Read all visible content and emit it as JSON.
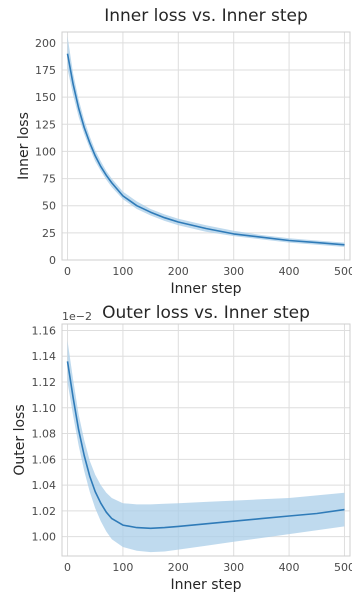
{
  "chart_data": [
    {
      "type": "line",
      "title": "Inner loss vs. Inner step",
      "xlabel": "Inner step",
      "ylabel": "Inner loss",
      "xlim": [
        -10,
        510
      ],
      "ylim": [
        0,
        210
      ],
      "xticks": [
        0,
        100,
        200,
        300,
        400,
        500
      ],
      "yticks": [
        0,
        25,
        50,
        75,
        100,
        125,
        150,
        175,
        200
      ],
      "grid": true,
      "colors": {
        "line": "#2f7bb8",
        "band": "#a9cde8"
      },
      "series": [
        {
          "x": [
            0,
            10,
            20,
            30,
            40,
            50,
            60,
            70,
            80,
            100,
            125,
            150,
            175,
            200,
            250,
            300,
            350,
            400,
            450,
            500
          ],
          "y": [
            190,
            162,
            140,
            122,
            108,
            96,
            86,
            78,
            71,
            59,
            50,
            44,
            39,
            35,
            29,
            24,
            21,
            18,
            16,
            14
          ],
          "lower": [
            176,
            152,
            132,
            116,
            103,
            91,
            82,
            74,
            67,
            56,
            47,
            41,
            36,
            32,
            26,
            22,
            19,
            16,
            14,
            12
          ],
          "upper": [
            206,
            172,
            148,
            129,
            114,
            101,
            91,
            82,
            75,
            63,
            54,
            47,
            42,
            38,
            32,
            27,
            23,
            20,
            18,
            16
          ]
        }
      ]
    },
    {
      "type": "line",
      "title": "Outer loss vs. Inner step",
      "xlabel": "Inner step",
      "ylabel": "Outer loss",
      "offset_label": "1e−2",
      "xlim": [
        -10,
        510
      ],
      "ylim": [
        0.985,
        1.165
      ],
      "xticks": [
        0,
        100,
        200,
        300,
        400,
        500
      ],
      "yticks": [
        1.0,
        1.02,
        1.04,
        1.06,
        1.08,
        1.1,
        1.12,
        1.14,
        1.16
      ],
      "grid": true,
      "colors": {
        "line": "#2f7bb8",
        "band": "#a9cde8"
      },
      "series": [
        {
          "x": [
            0,
            10,
            20,
            30,
            40,
            50,
            60,
            70,
            80,
            100,
            125,
            150,
            175,
            200,
            250,
            300,
            350,
            400,
            450,
            500
          ],
          "y": [
            1.136,
            1.108,
            1.083,
            1.063,
            1.047,
            1.035,
            1.026,
            1.019,
            1.014,
            1.009,
            1.007,
            1.0065,
            1.007,
            1.008,
            1.01,
            1.012,
            1.014,
            1.016,
            1.018,
            1.021
          ],
          "lower": [
            1.12,
            1.094,
            1.071,
            1.051,
            1.035,
            1.022,
            1.012,
            1.004,
            0.998,
            0.992,
            0.989,
            0.988,
            0.9885,
            0.99,
            0.993,
            0.996,
            0.999,
            1.002,
            1.005,
            1.008
          ],
          "upper": [
            1.152,
            1.122,
            1.095,
            1.075,
            1.059,
            1.048,
            1.04,
            1.034,
            1.03,
            1.026,
            1.025,
            1.025,
            1.0255,
            1.026,
            1.027,
            1.028,
            1.029,
            1.03,
            1.032,
            1.034
          ]
        }
      ]
    }
  ]
}
